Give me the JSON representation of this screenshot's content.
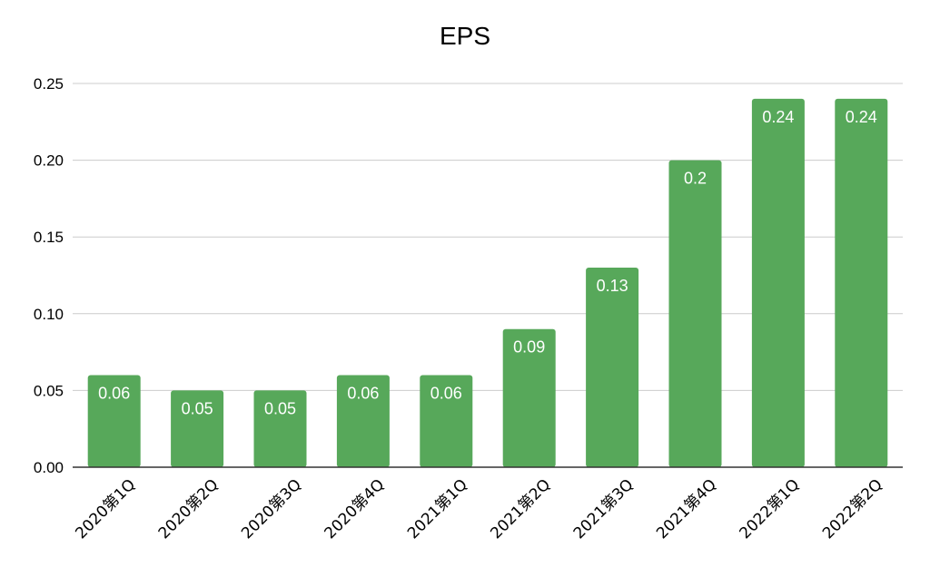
{
  "chart_data": {
    "type": "bar",
    "title": "EPS",
    "xlabel": "",
    "ylabel": "",
    "categories": [
      "2020第1Q",
      "2020第2Q",
      "2020第3Q",
      "2020第4Q",
      "2021第1Q",
      "2021第2Q",
      "2021第3Q",
      "2021第4Q",
      "2022第1Q",
      "2022第2Q"
    ],
    "values": [
      0.06,
      0.05,
      0.05,
      0.06,
      0.06,
      0.09,
      0.13,
      0.2,
      0.24,
      0.24
    ],
    "data_labels": [
      "0.06",
      "0.05",
      "0.05",
      "0.06",
      "0.06",
      "0.09",
      "0.13",
      "0.2",
      "0.24",
      "0.24"
    ],
    "yticks": [
      "0.00",
      "0.05",
      "0.10",
      "0.15",
      "0.20",
      "0.25"
    ],
    "ylim": [
      0,
      0.25
    ],
    "grid": true,
    "legend": "none",
    "bar_color": "#57a85a",
    "grid_color": "#cccccc"
  }
}
